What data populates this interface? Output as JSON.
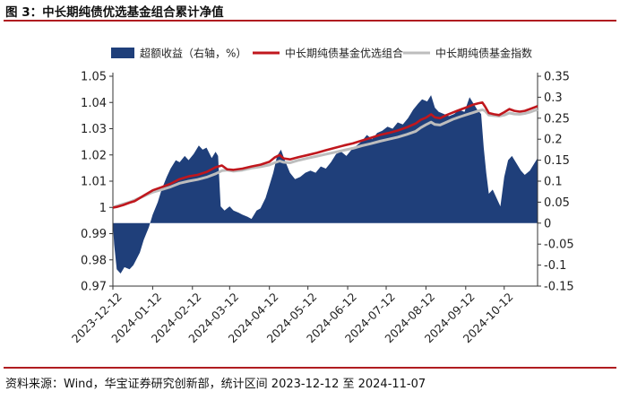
{
  "figure_title": "图 3：中长期纯债优选基金组合累计净值",
  "source_note": "资料来源：Wind，华宝证券研究创新部，统计区间 2023-12-12 至 2024-11-07",
  "colors": {
    "excess": "#1f3f7a",
    "portfolio": "#c0171d",
    "index": "#bdbdbd"
  },
  "chart_data": {
    "type": "line",
    "title": "",
    "x_type": "date",
    "x_range": [
      "2023-12-12",
      "2024-11-07"
    ],
    "x_ticks": [
      "2023-12-12",
      "2024-01-12",
      "2024-02-12",
      "2024-03-12",
      "2024-04-12",
      "2024-05-12",
      "2024-06-12",
      "2024-07-12",
      "2024-08-12",
      "2024-09-12",
      "2024-10-12"
    ],
    "y_left": {
      "range": [
        0.97,
        1.05
      ],
      "ticks": [
        "0.97",
        "0.98",
        "0.99",
        "1",
        "1.01",
        "1.02",
        "1.03",
        "1.04",
        "1.05"
      ]
    },
    "y_right": {
      "range": [
        -0.15,
        0.35
      ],
      "ticks": [
        "-0.15",
        "-0.1",
        "-0.05",
        "0",
        "0.05",
        "0.1",
        "0.15",
        "0.2",
        "0.25",
        "0.3",
        "0.35"
      ]
    },
    "grid": false,
    "legend_position": "top",
    "series": [
      {
        "name": "超额收益（右轴，%）",
        "kind": "area",
        "axis": "right",
        "points": [
          [
            "2023-12-12",
            0.0
          ],
          [
            "2023-12-13",
            -0.05
          ],
          [
            "2023-12-15",
            -0.11
          ],
          [
            "2023-12-18",
            -0.12
          ],
          [
            "2023-12-21",
            -0.105
          ],
          [
            "2023-12-25",
            -0.11
          ],
          [
            "2023-12-28",
            -0.1
          ],
          [
            "2024-01-02",
            -0.07
          ],
          [
            "2024-01-05",
            -0.04
          ],
          [
            "2024-01-09",
            -0.01
          ],
          [
            "2024-01-12",
            0.02
          ],
          [
            "2024-01-16",
            0.05
          ],
          [
            "2024-01-19",
            0.08
          ],
          [
            "2024-01-23",
            0.11
          ],
          [
            "2024-01-26",
            0.13
          ],
          [
            "2024-01-30",
            0.15
          ],
          [
            "2024-02-02",
            0.145
          ],
          [
            "2024-02-06",
            0.16
          ],
          [
            "2024-02-09",
            0.15
          ],
          [
            "2024-02-13",
            0.165
          ],
          [
            "2024-02-17",
            0.185
          ],
          [
            "2024-02-20",
            0.175
          ],
          [
            "2024-02-23",
            0.18
          ],
          [
            "2024-02-27",
            0.155
          ],
          [
            "2024-03-01",
            0.17
          ],
          [
            "2024-03-03",
            0.16
          ],
          [
            "2024-03-05",
            0.04
          ],
          [
            "2024-03-08",
            0.03
          ],
          [
            "2024-03-12",
            0.04
          ],
          [
            "2024-03-15",
            0.03
          ],
          [
            "2024-03-19",
            0.025
          ],
          [
            "2024-03-22",
            0.02
          ],
          [
            "2024-03-26",
            0.015
          ],
          [
            "2024-03-29",
            0.01
          ],
          [
            "2024-04-02",
            0.03
          ],
          [
            "2024-04-05",
            0.035
          ],
          [
            "2024-04-09",
            0.06
          ],
          [
            "2024-04-12",
            0.09
          ],
          [
            "2024-04-15",
            0.12
          ],
          [
            "2024-04-18",
            0.16
          ],
          [
            "2024-04-21",
            0.175
          ],
          [
            "2024-04-24",
            0.15
          ],
          [
            "2024-04-28",
            0.12
          ],
          [
            "2024-05-02",
            0.105
          ],
          [
            "2024-05-06",
            0.11
          ],
          [
            "2024-05-10",
            0.12
          ],
          [
            "2024-05-14",
            0.125
          ],
          [
            "2024-05-18",
            0.12
          ],
          [
            "2024-05-22",
            0.135
          ],
          [
            "2024-05-26",
            0.13
          ],
          [
            "2024-05-30",
            0.145
          ],
          [
            "2024-06-03",
            0.165
          ],
          [
            "2024-06-07",
            0.17
          ],
          [
            "2024-06-11",
            0.16
          ],
          [
            "2024-06-15",
            0.175
          ],
          [
            "2024-06-19",
            0.185
          ],
          [
            "2024-06-23",
            0.195
          ],
          [
            "2024-06-27",
            0.21
          ],
          [
            "2024-07-01",
            0.2
          ],
          [
            "2024-07-05",
            0.215
          ],
          [
            "2024-07-09",
            0.22
          ],
          [
            "2024-07-13",
            0.23
          ],
          [
            "2024-07-17",
            0.225
          ],
          [
            "2024-07-21",
            0.24
          ],
          [
            "2024-07-25",
            0.235
          ],
          [
            "2024-07-29",
            0.25
          ],
          [
            "2024-08-02",
            0.27
          ],
          [
            "2024-08-06",
            0.285
          ],
          [
            "2024-08-09",
            0.295
          ],
          [
            "2024-08-13",
            0.29
          ],
          [
            "2024-08-16",
            0.305
          ],
          [
            "2024-08-19",
            0.275
          ],
          [
            "2024-08-22",
            0.265
          ],
          [
            "2024-08-26",
            0.26
          ],
          [
            "2024-08-30",
            0.255
          ],
          [
            "2024-09-03",
            0.26
          ],
          [
            "2024-09-07",
            0.27
          ],
          [
            "2024-09-11",
            0.265
          ],
          [
            "2024-09-15",
            0.3
          ],
          [
            "2024-09-18",
            0.285
          ],
          [
            "2024-09-21",
            0.27
          ],
          [
            "2024-09-24",
            0.26
          ],
          [
            "2024-09-26",
            0.18
          ],
          [
            "2024-09-28",
            0.12
          ],
          [
            "2024-09-30",
            0.07
          ],
          [
            "2024-10-03",
            0.08
          ],
          [
            "2024-10-06",
            0.06
          ],
          [
            "2024-10-09",
            0.04
          ],
          [
            "2024-10-12",
            0.11
          ],
          [
            "2024-10-15",
            0.15
          ],
          [
            "2024-10-18",
            0.16
          ],
          [
            "2024-10-21",
            0.145
          ],
          [
            "2024-10-25",
            0.125
          ],
          [
            "2024-10-28",
            0.115
          ],
          [
            "2024-11-01",
            0.125
          ],
          [
            "2024-11-04",
            0.14
          ],
          [
            "2024-11-07",
            0.155
          ]
        ]
      },
      {
        "name": "中长期纯债基金优选组合",
        "kind": "line",
        "axis": "left",
        "points": [
          [
            "2023-12-12",
            0.9999
          ],
          [
            "2023-12-15",
            1.0002
          ],
          [
            "2023-12-20",
            1.0009
          ],
          [
            "2023-12-25",
            1.0018
          ],
          [
            "2023-12-29",
            1.0024
          ],
          [
            "2024-01-05",
            1.0045
          ],
          [
            "2024-01-12",
            1.0065
          ],
          [
            "2024-01-19",
            1.0077
          ],
          [
            "2024-01-26",
            1.009
          ],
          [
            "2024-02-02",
            1.0108
          ],
          [
            "2024-02-09",
            1.0118
          ],
          [
            "2024-02-16",
            1.0124
          ],
          [
            "2024-02-23",
            1.0135
          ],
          [
            "2024-03-01",
            1.0153
          ],
          [
            "2024-03-06",
            1.016
          ],
          [
            "2024-03-10",
            1.0145
          ],
          [
            "2024-03-15",
            1.0143
          ],
          [
            "2024-03-22",
            1.0148
          ],
          [
            "2024-03-29",
            1.0156
          ],
          [
            "2024-04-05",
            1.0163
          ],
          [
            "2024-04-12",
            1.0174
          ],
          [
            "2024-04-16",
            1.019
          ],
          [
            "2024-04-20",
            1.02
          ],
          [
            "2024-04-23",
            1.0187
          ],
          [
            "2024-04-28",
            1.0183
          ],
          [
            "2024-05-05",
            1.0192
          ],
          [
            "2024-05-12",
            1.02
          ],
          [
            "2024-05-19",
            1.0208
          ],
          [
            "2024-05-26",
            1.0218
          ],
          [
            "2024-06-02",
            1.0227
          ],
          [
            "2024-06-09",
            1.0236
          ],
          [
            "2024-06-16",
            1.0244
          ],
          [
            "2024-06-23",
            1.0255
          ],
          [
            "2024-06-30",
            1.0265
          ],
          [
            "2024-07-07",
            1.0276
          ],
          [
            "2024-07-14",
            1.0284
          ],
          [
            "2024-07-21",
            1.0293
          ],
          [
            "2024-07-28",
            1.0305
          ],
          [
            "2024-08-04",
            1.032
          ],
          [
            "2024-08-08",
            1.0334
          ],
          [
            "2024-08-12",
            1.0342
          ],
          [
            "2024-08-16",
            1.0355
          ],
          [
            "2024-08-19",
            1.0343
          ],
          [
            "2024-08-23",
            1.034
          ],
          [
            "2024-08-28",
            1.0352
          ],
          [
            "2024-09-02",
            1.0362
          ],
          [
            "2024-09-08",
            1.0373
          ],
          [
            "2024-09-13",
            1.0382
          ],
          [
            "2024-09-18",
            1.0392
          ],
          [
            "2024-09-22",
            1.0397
          ],
          [
            "2024-09-25",
            1.04
          ],
          [
            "2024-09-27",
            1.0385
          ],
          [
            "2024-09-30",
            1.036
          ],
          [
            "2024-10-04",
            1.0355
          ],
          [
            "2024-10-08",
            1.0352
          ],
          [
            "2024-10-12",
            1.0363
          ],
          [
            "2024-10-16",
            1.0375
          ],
          [
            "2024-10-20",
            1.0368
          ],
          [
            "2024-10-24",
            1.0365
          ],
          [
            "2024-10-28",
            1.0368
          ],
          [
            "2024-11-01",
            1.0375
          ],
          [
            "2024-11-05",
            1.0382
          ],
          [
            "2024-11-07",
            1.0386
          ]
        ]
      },
      {
        "name": "中长期纯债基金指数",
        "kind": "line",
        "axis": "left",
        "points": [
          [
            "2023-12-12",
            1.0
          ],
          [
            "2023-12-15",
            1.0005
          ],
          [
            "2023-12-20",
            1.0013
          ],
          [
            "2023-12-25",
            1.002
          ],
          [
            "2023-12-29",
            1.0028
          ],
          [
            "2024-01-05",
            1.0043
          ],
          [
            "2024-01-12",
            1.0058
          ],
          [
            "2024-01-19",
            1.0068
          ],
          [
            "2024-01-26",
            1.0078
          ],
          [
            "2024-02-02",
            1.0092
          ],
          [
            "2024-02-09",
            1.01
          ],
          [
            "2024-02-16",
            1.0106
          ],
          [
            "2024-02-23",
            1.0115
          ],
          [
            "2024-03-01",
            1.0128
          ],
          [
            "2024-03-06",
            1.014
          ],
          [
            "2024-03-10",
            1.0142
          ],
          [
            "2024-03-15",
            1.0138
          ],
          [
            "2024-03-22",
            1.0142
          ],
          [
            "2024-03-29",
            1.015
          ],
          [
            "2024-04-05",
            1.0155
          ],
          [
            "2024-04-12",
            1.0162
          ],
          [
            "2024-04-16",
            1.017
          ],
          [
            "2024-04-20",
            1.0177
          ],
          [
            "2024-04-23",
            1.0172
          ],
          [
            "2024-04-28",
            1.017
          ],
          [
            "2024-05-05",
            1.018
          ],
          [
            "2024-05-12",
            1.0188
          ],
          [
            "2024-05-19",
            1.0195
          ],
          [
            "2024-05-26",
            1.0203
          ],
          [
            "2024-06-02",
            1.021
          ],
          [
            "2024-06-09",
            1.0218
          ],
          [
            "2024-06-16",
            1.0225
          ],
          [
            "2024-06-23",
            1.0235
          ],
          [
            "2024-06-30",
            1.0243
          ],
          [
            "2024-07-07",
            1.0252
          ],
          [
            "2024-07-14",
            1.026
          ],
          [
            "2024-07-21",
            1.0268
          ],
          [
            "2024-07-28",
            1.0278
          ],
          [
            "2024-08-04",
            1.029
          ],
          [
            "2024-08-08",
            1.0304
          ],
          [
            "2024-08-12",
            1.0315
          ],
          [
            "2024-08-16",
            1.0325
          ],
          [
            "2024-08-19",
            1.0316
          ],
          [
            "2024-08-23",
            1.0314
          ],
          [
            "2024-08-28",
            1.0325
          ],
          [
            "2024-09-02",
            1.0336
          ],
          [
            "2024-09-08",
            1.0346
          ],
          [
            "2024-09-13",
            1.0354
          ],
          [
            "2024-09-18",
            1.0362
          ],
          [
            "2024-09-22",
            1.0368
          ],
          [
            "2024-09-25",
            1.0372
          ],
          [
            "2024-09-27",
            1.0368
          ],
          [
            "2024-09-30",
            1.0352
          ],
          [
            "2024-10-04",
            1.035
          ],
          [
            "2024-10-08",
            1.0348
          ],
          [
            "2024-10-12",
            1.0352
          ],
          [
            "2024-10-16",
            1.036
          ],
          [
            "2024-10-20",
            1.0356
          ],
          [
            "2024-10-24",
            1.0355
          ],
          [
            "2024-10-28",
            1.0358
          ],
          [
            "2024-11-01",
            1.0363
          ],
          [
            "2024-11-05",
            1.037
          ],
          [
            "2024-11-07",
            1.0372
          ]
        ]
      }
    ]
  }
}
